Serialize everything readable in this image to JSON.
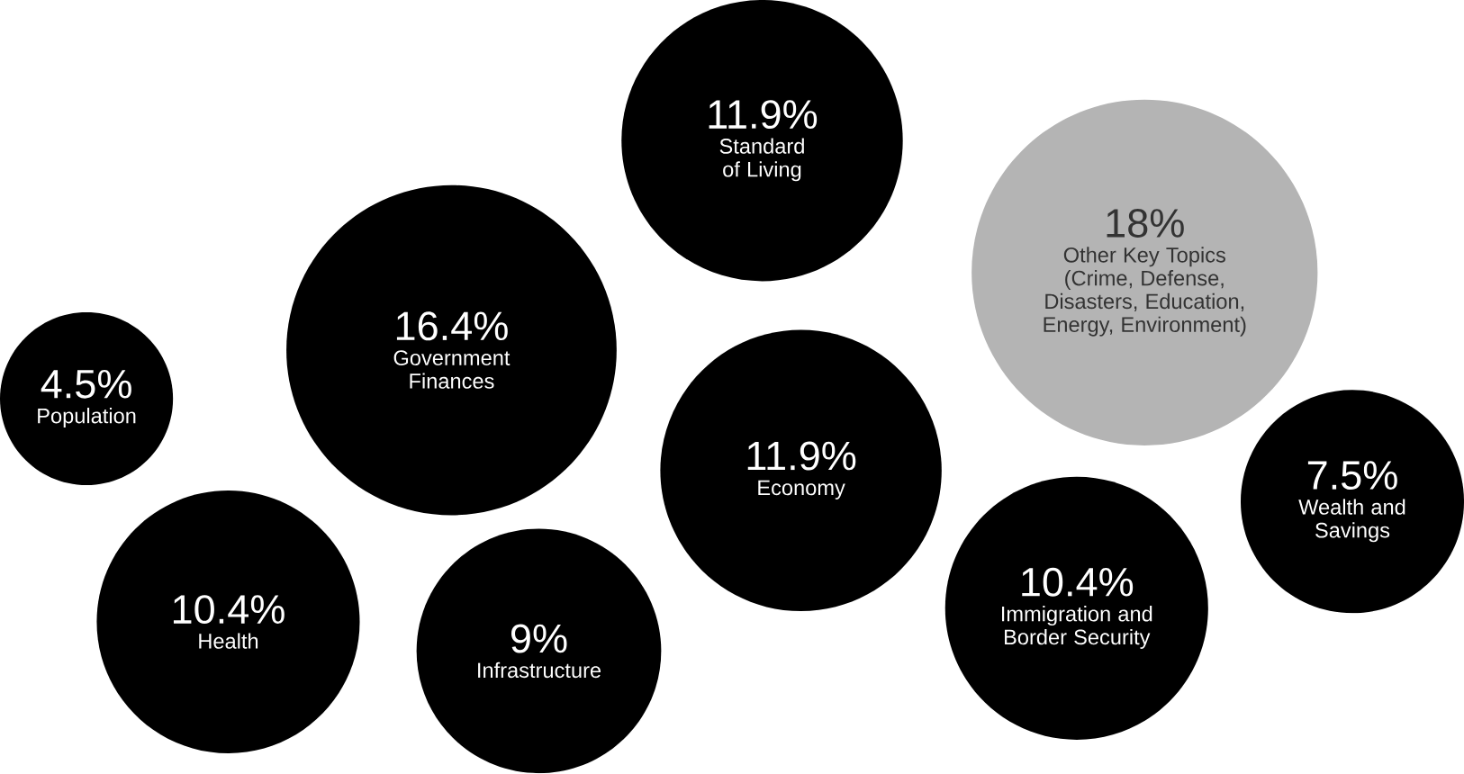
{
  "chart_data": {
    "type": "other",
    "categories": [
      "Population",
      "Government Finances",
      "Standard of Living",
      "Other Key Topics (Crime, Defense, Disasters, Education, Energy, Environment)",
      "Economy",
      "Wealth and Savings",
      "Health",
      "Infrastructure",
      "Immigration and Border Security"
    ],
    "values": [
      4.5,
      16.4,
      11.9,
      18,
      11.9,
      7.5,
      10.4,
      9,
      10.4
    ],
    "value_labels": [
      "4.5%",
      "16.4%",
      "11.9%",
      "18%",
      "11.9%",
      "7.5%",
      "10.4%",
      "9%",
      "10.4%"
    ],
    "colors": [
      "#000000",
      "#000000",
      "#000000",
      "#b4b4b4",
      "#000000",
      "#000000",
      "#000000",
      "#000000",
      "#000000"
    ]
  }
}
